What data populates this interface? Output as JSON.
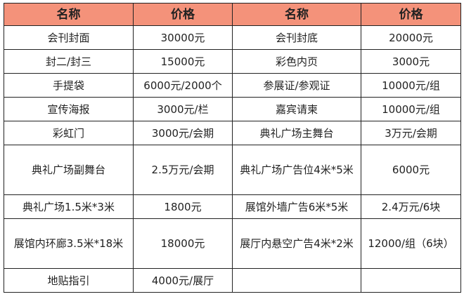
{
  "header_color": "#f4927a",
  "headers": [
    "名称",
    "价格",
    "名称",
    "价格"
  ],
  "rows": [
    [
      "会刊封面",
      "30000元",
      "会刊封底",
      "20000元"
    ],
    [
      "封二/封三",
      "15000元",
      "彩色内页",
      "3000元"
    ],
    [
      "手提袋",
      "6000元/2000个",
      "参展证/参观证",
      "10000元/组"
    ],
    [
      "宣传海报",
      "3000元/栏",
      "嘉宾请柬",
      "10000元/组"
    ],
    [
      "彩虹门",
      "3000元/会期",
      "典礼广场主舞台",
      "3万元/会期"
    ],
    [
      "典礼广场副舞台",
      "2.5万元/会期",
      "典礼广场广告位4米*5米",
      "6000元"
    ],
    [
      "典礼广场1.5米*3米",
      "1800元",
      "展馆外墙广告6米*5米",
      "2.4万元/6块"
    ],
    [
      "展馆内环廊3.5米*18米",
      "18000元",
      "展厅内悬空广告4米*2米",
      "12000/组（6块）"
    ],
    [
      "地贴指引",
      "4000元/展厅",
      "",
      ""
    ]
  ]
}
